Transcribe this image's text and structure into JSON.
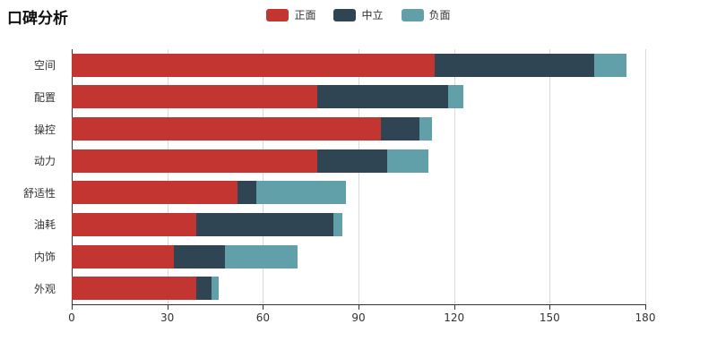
{
  "chart_data": {
    "type": "bar",
    "orientation": "horizontal",
    "stacked": true,
    "title": "口碑分析",
    "categories": [
      "空间",
      "配置",
      "操控",
      "动力",
      "舒适性",
      "油耗",
      "内饰",
      "外观"
    ],
    "series": [
      {
        "name": "正面",
        "color": "#c23531",
        "values": [
          114,
          77,
          97,
          77,
          52,
          39,
          32,
          39
        ]
      },
      {
        "name": "中立",
        "color": "#2f4554",
        "values": [
          50,
          41,
          12,
          22,
          6,
          43,
          16,
          5
        ]
      },
      {
        "name": "负面",
        "color": "#61a0a8",
        "values": [
          10,
          5,
          4,
          13,
          28,
          3,
          23,
          2
        ]
      }
    ],
    "legend": [
      "正面",
      "中立",
      "负面"
    ],
    "legend_position": "top-center",
    "x_ticks": [
      0,
      30,
      60,
      90,
      120,
      150,
      180
    ],
    "xlim": [
      0,
      180
    ],
    "xlabel": "",
    "ylabel": "",
    "grid": true,
    "background": "#ffffff"
  }
}
